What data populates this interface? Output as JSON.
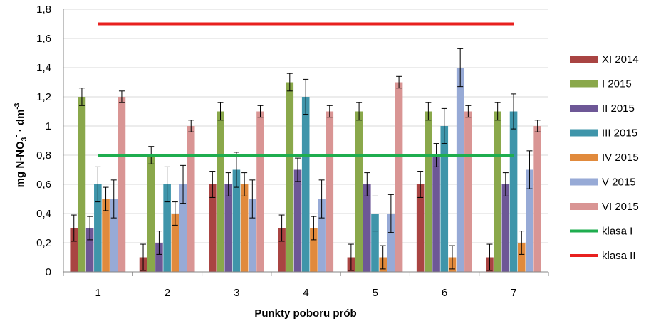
{
  "chart_data": {
    "type": "bar",
    "xlabel": "Punkty poboru prób",
    "ylabel": {
      "prefix": "mg N-NO",
      "sub": "3",
      "sup1": "-",
      "mid": " · dm",
      "sup2": "-3"
    },
    "ylim": [
      0,
      1.8
    ],
    "yticks": [
      "0",
      "0,2",
      "0,4",
      "0,6",
      "0,8",
      "1",
      "1,2",
      "1,4",
      "1,6",
      "1,8"
    ],
    "grid": true,
    "legend_position": "right",
    "categories": [
      "1",
      "2",
      "3",
      "4",
      "5",
      "6",
      "7"
    ],
    "series": [
      {
        "name": "XI 2014",
        "color": "#a94442",
        "values": [
          0.3,
          0.1,
          0.6,
          0.3,
          0.1,
          0.6,
          0.1
        ],
        "errors": [
          0.09,
          0.09,
          0.09,
          0.09,
          0.09,
          0.09,
          0.09
        ]
      },
      {
        "name": "I 2015",
        "color": "#8aa84b",
        "values": [
          1.2,
          0.8,
          1.1,
          1.3,
          1.1,
          1.1,
          1.1
        ],
        "errors": [
          0.06,
          0.06,
          0.06,
          0.06,
          0.06,
          0.06,
          0.06
        ]
      },
      {
        "name": "II 2015",
        "color": "#6d5796",
        "values": [
          0.3,
          0.2,
          0.6,
          0.7,
          0.6,
          0.8,
          0.6
        ],
        "errors": [
          0.08,
          0.08,
          0.08,
          0.08,
          0.08,
          0.08,
          0.08
        ]
      },
      {
        "name": "III 2015",
        "color": "#3f95aa",
        "values": [
          0.6,
          0.6,
          0.7,
          1.2,
          0.4,
          1.0,
          1.1
        ],
        "errors": [
          0.12,
          0.12,
          0.12,
          0.12,
          0.12,
          0.12,
          0.12
        ]
      },
      {
        "name": "IV 2015",
        "color": "#e18a3c",
        "values": [
          0.5,
          0.4,
          0.6,
          0.3,
          0.1,
          0.1,
          0.2
        ],
        "errors": [
          0.08,
          0.08,
          0.08,
          0.08,
          0.08,
          0.08,
          0.08
        ]
      },
      {
        "name": "V 2015",
        "color": "#97aad6",
        "values": [
          0.5,
          0.6,
          0.5,
          0.5,
          0.4,
          1.4,
          0.7
        ],
        "errors": [
          0.13,
          0.13,
          0.13,
          0.13,
          0.13,
          0.13,
          0.13
        ]
      },
      {
        "name": "VI 2015",
        "color": "#d99594",
        "values": [
          1.2,
          1.0,
          1.1,
          1.1,
          1.3,
          1.1,
          1.0
        ],
        "errors": [
          0.04,
          0.04,
          0.04,
          0.04,
          0.04,
          0.04,
          0.04
        ]
      }
    ],
    "reference_lines": [
      {
        "name": "klasa I",
        "color": "#1fad4f",
        "value": 0.8
      },
      {
        "name": "klasa II",
        "color": "#e8201f",
        "value": 1.7
      }
    ]
  }
}
